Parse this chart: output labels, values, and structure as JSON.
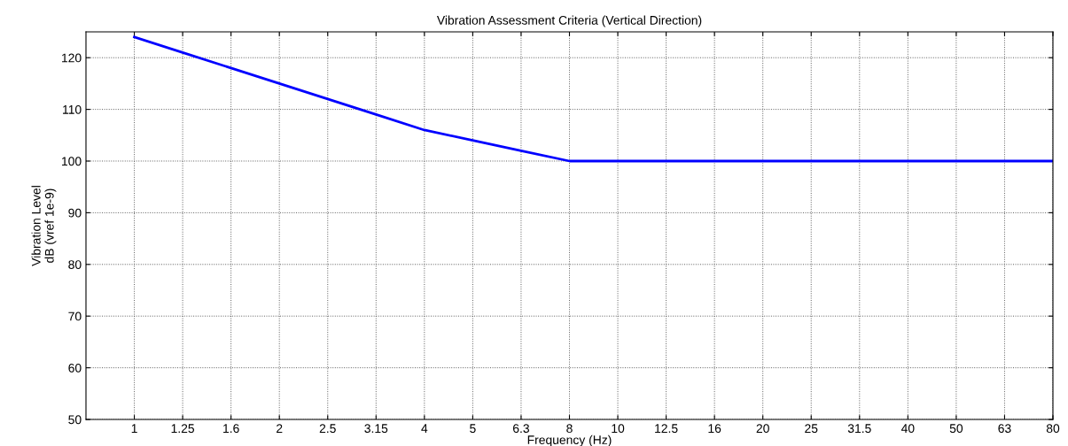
{
  "chart_data": {
    "type": "line",
    "title": "Vibration Assessment Criteria (Vertical Direction)",
    "xlabel": "Frequency (Hz)",
    "ylabel": "Vibration Level\ndB (vref 1e-9)",
    "categories": [
      "1",
      "1.25",
      "1.6",
      "2",
      "2.5",
      "3.15",
      "4",
      "5",
      "6.3",
      "8",
      "10",
      "12.5",
      "16",
      "20",
      "25",
      "31.5",
      "40",
      "50",
      "63",
      "80"
    ],
    "series": [
      {
        "color": "#0000ff",
        "values": [
          124,
          121,
          118,
          115,
          112,
          109,
          106,
          104,
          102,
          100,
          100,
          100,
          100,
          100,
          100,
          100,
          100,
          100,
          100,
          100
        ]
      }
    ],
    "ylim": [
      50,
      125
    ],
    "yticks": [
      50,
      60,
      70,
      80,
      90,
      100,
      110,
      120
    ],
    "grid": true,
    "line_style": "solid",
    "marker": "none"
  }
}
